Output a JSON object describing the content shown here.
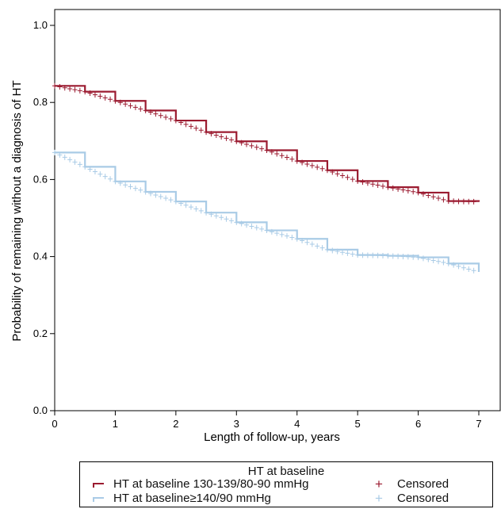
{
  "colors": {
    "series1": "#9b1b30",
    "series2": "#a9cbe6",
    "axis": "#000000"
  },
  "chart_data": {
    "type": "line",
    "xlabel": "Length of follow-up, years",
    "ylabel": "Probability of remaining without a diagnosis of HT",
    "xlim": [
      0,
      7
    ],
    "ylim": [
      0,
      1.0
    ],
    "x_ticks": [
      "0",
      "1",
      "2",
      "3",
      "4",
      "5",
      "6",
      "7"
    ],
    "y_ticks": [
      "0.0",
      "0.2",
      "0.4",
      "0.6",
      "0.8",
      "1.0"
    ],
    "grid": false,
    "legend_position": "bottom",
    "series": [
      {
        "name": "HT at baseline 130-139/80-90 mmHg",
        "censor_name": "Censored",
        "color": "#9b1b30",
        "x": [
          0,
          0.5,
          1.0,
          1.5,
          2.0,
          2.5,
          3.0,
          3.5,
          4.0,
          4.5,
          5.0,
          5.5,
          6.0,
          6.5,
          7.0
        ],
        "y": [
          0.843,
          0.828,
          0.804,
          0.779,
          0.753,
          0.723,
          0.699,
          0.676,
          0.648,
          0.624,
          0.596,
          0.58,
          0.566,
          0.544,
          0.542
        ]
      },
      {
        "name": "HT at baseline≥140/90 mmHg",
        "censor_name": "Censored",
        "color": "#a9cbe6",
        "x": [
          0,
          0.5,
          1.0,
          1.5,
          2.0,
          2.5,
          3.0,
          3.5,
          4.0,
          4.5,
          5.0,
          5.5,
          6.0,
          6.5,
          7.0
        ],
        "y": [
          0.67,
          0.633,
          0.595,
          0.568,
          0.543,
          0.514,
          0.489,
          0.468,
          0.446,
          0.418,
          0.404,
          0.402,
          0.398,
          0.382,
          0.36
        ]
      }
    ]
  },
  "legend": {
    "title": "HT at baseline",
    "items": [
      {
        "label": "HT at baseline 130-139/80-90 mmHg",
        "censored": "Censored"
      },
      {
        "label": "HT at baseline≥140/90 mmHg",
        "censored": "Censored"
      }
    ]
  }
}
